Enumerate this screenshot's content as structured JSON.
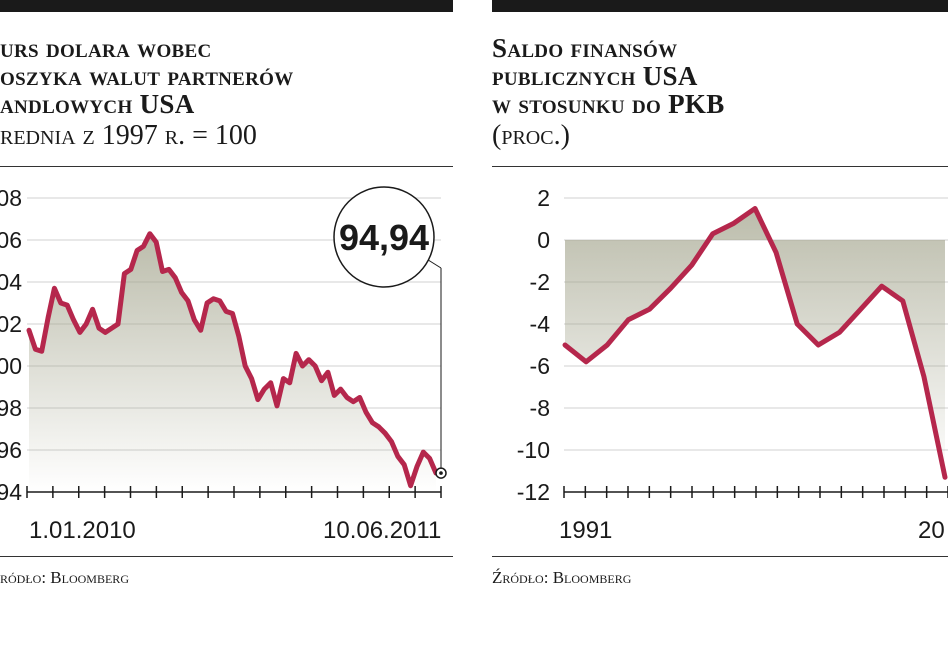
{
  "chart_data": [
    {
      "type": "line",
      "title_lines": [
        "urs dolara wobec",
        "oszyka walut partnerów",
        "andlowych USA"
      ],
      "subtitle": "rednia z 1997 r. = 100",
      "yticks": [
        "08",
        "06",
        "04",
        "02",
        "00",
        "98",
        "96",
        "94"
      ],
      "ylim": [
        94,
        108
      ],
      "x_labels": [
        "1.01.2010",
        "10.06.2011"
      ],
      "callout": "94,94",
      "source": "ródło: Bloomberg",
      "series": [
        {
          "values": [
            101.7,
            100.8,
            100.7,
            102.3,
            103.7,
            103.0,
            102.9,
            102.2,
            101.6,
            102.0,
            102.7,
            101.8,
            101.6,
            101.8,
            102.0,
            104.4,
            104.6,
            105.5,
            105.7,
            106.3,
            105.9,
            104.5,
            104.6,
            104.2,
            103.5,
            103.1,
            102.2,
            101.7,
            103.0,
            103.2,
            103.1,
            102.6,
            102.5,
            101.4,
            100.0,
            99.4,
            98.4,
            98.9,
            99.2,
            98.1,
            99.4,
            99.2,
            100.6,
            100.0,
            100.3,
            100.0,
            99.3,
            99.7,
            98.6,
            98.9,
            98.5,
            98.3,
            98.5,
            97.8,
            97.3,
            97.1,
            96.8,
            96.4,
            95.7,
            95.3,
            94.3,
            95.2,
            95.9,
            95.6,
            94.9
          ],
          "color": "#b5274c"
        }
      ]
    },
    {
      "type": "line",
      "title_lines": [
        "Saldo finansów",
        "publicznych USA",
        "w stosunku do PKB"
      ],
      "subtitle": "(proc.)",
      "yticks": [
        "2",
        "0",
        "-2",
        "-4",
        "-6",
        "-8",
        "-10",
        "-12"
      ],
      "ylim": [
        -12,
        2
      ],
      "x_labels": [
        "1991",
        "20"
      ],
      "source": "Źródło: Bloomberg",
      "series": [
        {
          "x": [
            1991,
            1992,
            1993,
            1994,
            1995,
            1996,
            1997,
            1998,
            1999,
            2000,
            2001,
            2002,
            2003,
            2004,
            2005,
            2006,
            2007,
            2008,
            2009
          ],
          "values": [
            -5.0,
            -5.8,
            -5.0,
            -3.8,
            -3.3,
            -2.3,
            -1.2,
            0.3,
            0.8,
            1.5,
            -0.6,
            -4.0,
            -5.0,
            -4.4,
            -3.3,
            -2.2,
            -2.9,
            -6.5,
            -11.3
          ],
          "color": "#b5274c"
        }
      ]
    }
  ]
}
